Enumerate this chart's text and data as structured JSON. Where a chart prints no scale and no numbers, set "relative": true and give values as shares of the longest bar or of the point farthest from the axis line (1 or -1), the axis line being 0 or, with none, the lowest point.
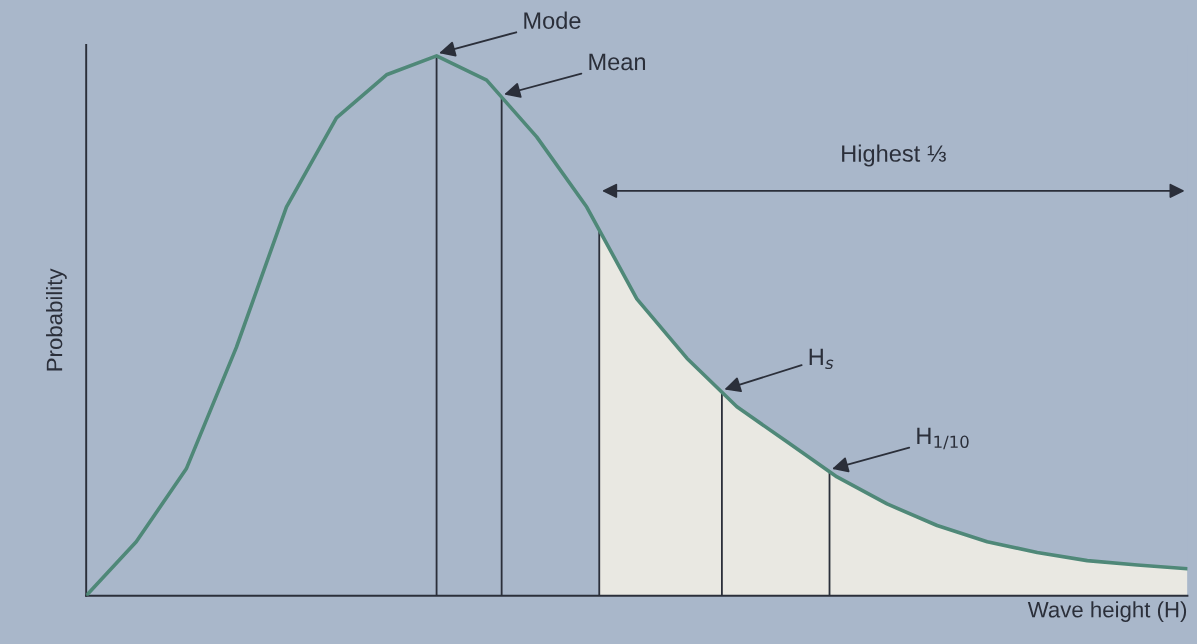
{
  "chart_data": {
    "type": "line",
    "relative": true,
    "xlabel": "Wave height (H)",
    "ylabel": "Probability",
    "tick_labels": false,
    "categories": [
      null,
      null,
      null,
      null,
      null,
      null,
      null,
      null,
      null,
      null,
      null,
      null,
      null,
      null,
      null,
      null,
      null,
      null,
      null,
      null,
      null,
      null,
      null
    ],
    "series": [
      {
        "color": "#4f8878",
        "values": [
          0,
          0.1,
          0.235,
          0.46,
          0.72,
          0.885,
          0.965,
          1,
          0.955,
          0.85,
          0.72,
          0.55,
          0.44,
          0.35,
          0.285,
          0.22,
          0.17,
          0.13,
          0.1,
          0.08,
          0.065,
          0.057,
          0.05
        ]
      }
    ],
    "annotations": [
      "Mode",
      "Mean",
      "Highest ⅓",
      "H$_{s}$",
      "H$_{1/10}$"
    ]
  }
}
